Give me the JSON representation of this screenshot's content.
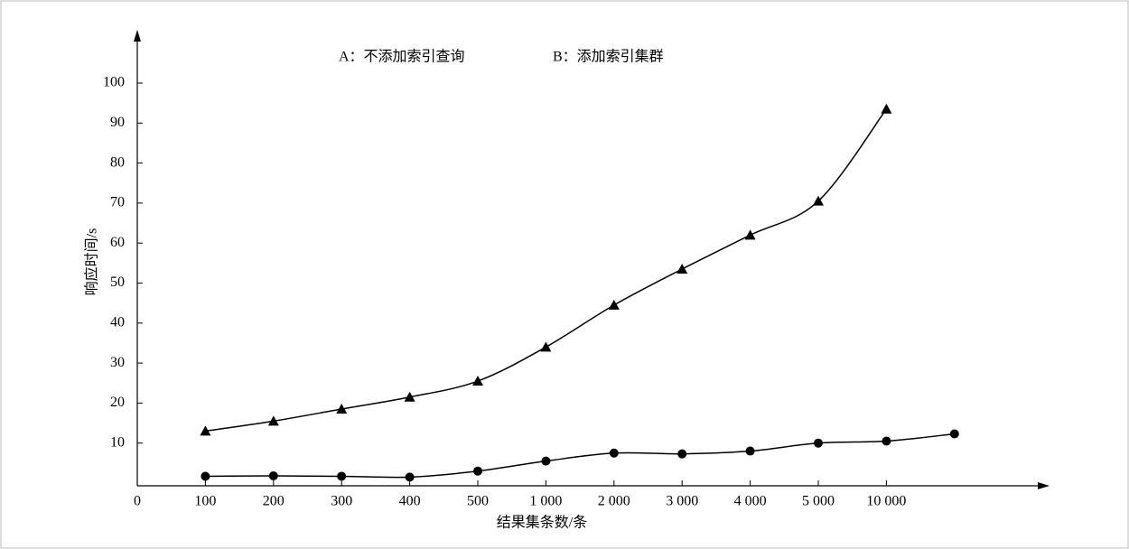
{
  "chart_data": {
    "type": "line",
    "xlabel": "结果集条数/条",
    "ylabel": "响应时间/s",
    "categories": [
      "0",
      "100",
      "200",
      "300",
      "400",
      "500",
      "1 000",
      "2 000",
      "3 000",
      "4 000",
      "5 000",
      "10 000",
      null
    ],
    "series": [
      {
        "name": "A：不添加索引查询",
        "color": "#000000",
        "marker": "triangle",
        "values": [
          null,
          13,
          15.5,
          18.5,
          21.5,
          25.5,
          34,
          44.5,
          53.5,
          62,
          70.5,
          93.5,
          null
        ]
      },
      {
        "name": "B：添加索引集群",
        "color": "#000000",
        "marker": "circle",
        "values": [
          null,
          1.7,
          1.8,
          1.7,
          1.5,
          3,
          5.5,
          7.5,
          7.3,
          8,
          10,
          10.5,
          12.3
        ]
      }
    ],
    "ylim": [
      0,
      100
    ],
    "yticks": [
      10,
      20,
      30,
      40,
      50,
      60,
      70,
      80,
      90,
      100
    ]
  }
}
